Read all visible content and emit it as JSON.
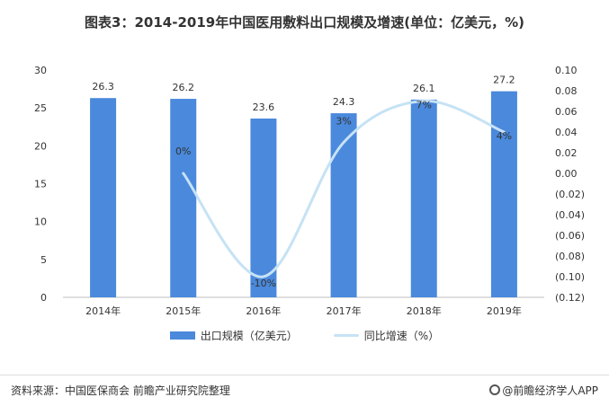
{
  "title": "图表3：2014-2019年中国医用敷料出口规模及增速(单位：亿美元，%)",
  "source": "资料来源：中国医保商会 前瞻产业研究院整理",
  "brand": "@前瞻经济学人APP",
  "colors": {
    "bar": "#4a89dc",
    "line": "#c6e2f5"
  },
  "chart_data": {
    "type": "bar",
    "categories": [
      "2014年",
      "2015年",
      "2016年",
      "2017年",
      "2018年",
      "2019年"
    ],
    "series": [
      {
        "name": "出口规模（亿美元）",
        "type": "bar",
        "axis": "left",
        "values": [
          26.3,
          26.2,
          23.6,
          24.3,
          26.1,
          27.2
        ],
        "labels": [
          "26.3",
          "26.2",
          "23.6",
          "24.3",
          "26.1",
          "27.2"
        ]
      },
      {
        "name": "同比增速（%）",
        "type": "line",
        "axis": "right",
        "values": [
          null,
          0.0,
          -0.1,
          0.03,
          0.07,
          0.04
        ],
        "labels": [
          "",
          "0%",
          "-10%",
          "3%",
          "7%",
          "4%"
        ]
      }
    ],
    "y_left": {
      "ylim": [
        0,
        30
      ],
      "ticks": [
        "0",
        "5",
        "10",
        "15",
        "20",
        "25",
        "30"
      ]
    },
    "y_right": {
      "ylim": [
        -0.12,
        0.1
      ],
      "ticks": [
        "0.10",
        "0.08",
        "0.06",
        "0.04",
        "0.02",
        "0.00",
        "(0.02)",
        "(0.04)",
        "(0.06)",
        "(0.08)",
        "(0.10)",
        "(0.12)"
      ]
    },
    "legend": "bottom",
    "grid": false
  }
}
